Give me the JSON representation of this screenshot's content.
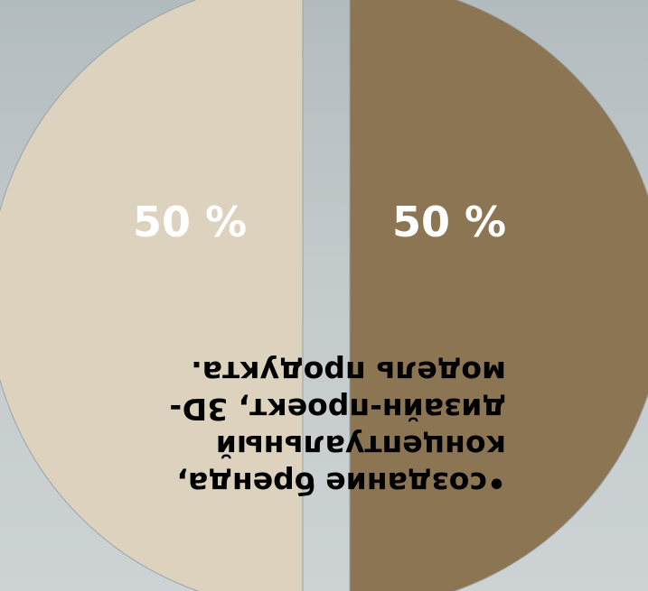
{
  "chart_data": {
    "type": "pie",
    "categories": [
      "",
      ""
    ],
    "values": [
      50,
      50
    ],
    "data_labels": [
      "50 %",
      "50 %"
    ],
    "colors": [
      "#8c7552",
      "#dcd2bd"
    ],
    "start": "top",
    "exploded": true
  },
  "annotation": {
    "bullet": "•",
    "text": "создание бренда, концептуальный дизайн-проект, 3D-модель продукта."
  }
}
